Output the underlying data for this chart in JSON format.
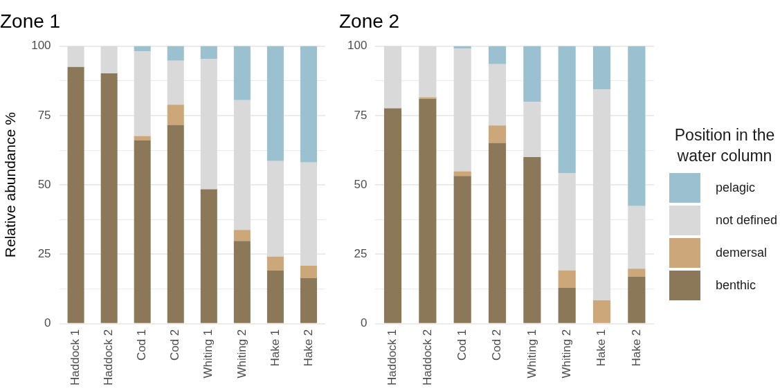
{
  "chart_data": [
    {
      "type": "bar",
      "title": "Zone 1",
      "ylabel": "Relative abundance %",
      "stacked": true,
      "grid": true,
      "legend": false,
      "categories": [
        "Haddock 1",
        "Haddock 2",
        "Cod 1",
        "Cod 2",
        "Whiting 1",
        "Whiting 2",
        "Hake 1",
        "Hake 2"
      ],
      "ylim": [
        0,
        100
      ],
      "yticks": [
        0,
        {
          "value": 12.5,
          "label": null
        },
        25,
        {
          "value": 37.5,
          "label": null
        },
        50,
        {
          "value": 62.5,
          "label": null
        },
        75,
        {
          "value": 87.5,
          "label": null
        },
        100
      ],
      "series": [
        {
          "color": "#8b7858",
          "values": [
            92.5,
            90.2,
            66.0,
            71.6,
            48.4,
            29.8,
            19.2,
            16.4
          ]
        },
        {
          "color": "#cca77a",
          "values": [
            0,
            0,
            1.6,
            7.3,
            0,
            4.0,
            5.0,
            4.5
          ]
        },
        {
          "color": "#d9d9d9",
          "values": [
            7.5,
            9.8,
            30.5,
            15.8,
            46.9,
            46.7,
            34.4,
            37.2
          ]
        },
        {
          "color": "#9bc0cf",
          "values": [
            0,
            0,
            1.9,
            5.3,
            4.7,
            19.5,
            41.4,
            41.9
          ]
        }
      ]
    },
    {
      "type": "bar",
      "title": "Zone 2",
      "stacked": true,
      "grid": true,
      "legend": "right",
      "legend_title": "Position in the water column",
      "categories": [
        "Haddock 1",
        "Haddock 2",
        "Cod 1",
        "Cod 2",
        "Whiting 1",
        "Whiting 2",
        "Hake 1",
        "Hake 2"
      ],
      "ylim": [
        0,
        100
      ],
      "yticks": [
        0,
        {
          "value": 12.5,
          "label": null
        },
        25,
        {
          "value": 37.5,
          "label": null
        },
        50,
        {
          "value": 62.5,
          "label": null
        },
        75,
        {
          "value": 87.5,
          "label": null
        },
        100
      ],
      "series": [
        {
          "name": "benthic",
          "color": "#8b7858",
          "values": [
            77.6,
            81.0,
            53.2,
            65.1,
            60.0,
            12.9,
            0,
            16.9
          ]
        },
        {
          "name": "demersal",
          "color": "#cca77a",
          "values": [
            0,
            0.6,
            1.7,
            6.3,
            0,
            6.3,
            8.4,
            2.9
          ]
        },
        {
          "name": "not defined",
          "color": "#d9d9d9",
          "values": [
            22.4,
            18.4,
            44.2,
            22.1,
            19.9,
            35.1,
            76.0,
            22.6
          ]
        },
        {
          "name": "pelagic",
          "color": "#9bc0cf",
          "values": [
            0,
            0,
            0.9,
            6.5,
            20.1,
            45.7,
            15.6,
            57.6
          ]
        }
      ]
    }
  ]
}
